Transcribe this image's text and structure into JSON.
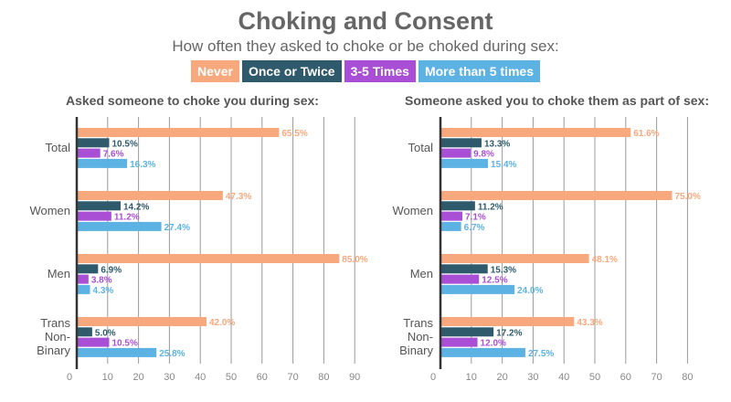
{
  "title": "Choking and Consent",
  "subtitle": "How often they asked to choke or be choked during sex:",
  "legend": [
    {
      "label": "Never",
      "color": "#f7a87d"
    },
    {
      "label": "Once or Twice",
      "color": "#2e5a6b"
    },
    {
      "label": "3-5 Times",
      "color": "#a94fd6"
    },
    {
      "label": "More than 5 times",
      "color": "#5cb3e3"
    }
  ],
  "chart_data": [
    {
      "type": "bar",
      "orientation": "horizontal",
      "title": "Asked someone to choke you during sex:",
      "categories": [
        "Total",
        "Women",
        "Men",
        "Trans\nNon-\nBinary"
      ],
      "series": [
        {
          "name": "Never",
          "values": [
            65.5,
            47.3,
            85.0,
            42.0
          ],
          "labels": [
            "65.5%",
            "47.3%",
            "85.0%",
            "42.0%"
          ]
        },
        {
          "name": "Once or Twice",
          "values": [
            10.5,
            14.2,
            6.9,
            5.0
          ],
          "labels": [
            "10.5%",
            "14.2%",
            "6.9%",
            "5.0%"
          ]
        },
        {
          "name": "3-5 Times",
          "values": [
            7.6,
            11.2,
            3.8,
            10.5
          ],
          "labels": [
            "7.6%",
            "11.2%",
            "3.8%",
            "10.5%"
          ]
        },
        {
          "name": "More than 5 times",
          "values": [
            16.3,
            27.4,
            4.3,
            25.8
          ],
          "labels": [
            "16.3%",
            "27.4%",
            "4.3%",
            "25.8%"
          ]
        }
      ],
      "xticks": [
        0,
        10,
        20,
        30,
        40,
        50,
        60,
        70,
        80,
        90
      ],
      "xlim": [
        0,
        90
      ],
      "grid": true
    },
    {
      "type": "bar",
      "orientation": "horizontal",
      "title": "Someone asked you to choke them as part of sex:",
      "categories": [
        "Total",
        "Women",
        "Men",
        "Trans\nNon-\nBinary"
      ],
      "series": [
        {
          "name": "Never",
          "values": [
            61.6,
            75.0,
            48.1,
            43.3
          ],
          "labels": [
            "61.6%",
            "75.0%",
            "48.1%",
            "43.3%"
          ]
        },
        {
          "name": "Once or Twice",
          "values": [
            13.3,
            11.2,
            15.3,
            17.2
          ],
          "labels": [
            "13.3%",
            "11.2%",
            "15.3%",
            "17.2%"
          ]
        },
        {
          "name": "3-5 Times",
          "values": [
            9.8,
            7.1,
            12.5,
            12.0
          ],
          "labels": [
            "9.8%",
            "7.1%",
            "12.5%",
            "12.0%"
          ]
        },
        {
          "name": "More than 5 times",
          "values": [
            15.4,
            6.7,
            24.0,
            27.5
          ],
          "labels": [
            "15.4%",
            "6.7%",
            "24.0%",
            "27.5%"
          ]
        }
      ],
      "xticks": [
        0,
        10,
        20,
        30,
        40,
        50,
        60,
        70,
        80
      ],
      "xlim": [
        0,
        80
      ],
      "grid": true
    }
  ]
}
